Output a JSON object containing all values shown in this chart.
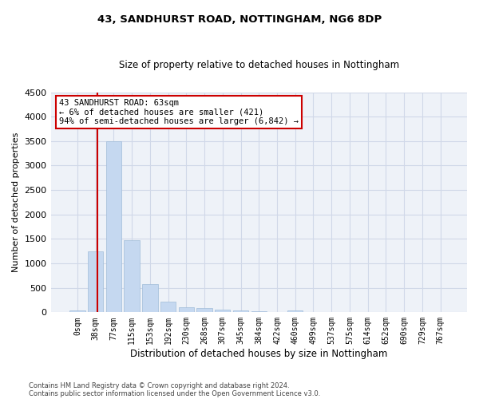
{
  "title1": "43, SANDHURST ROAD, NOTTINGHAM, NG6 8DP",
  "title2": "Size of property relative to detached houses in Nottingham",
  "xlabel": "Distribution of detached houses by size in Nottingham",
  "ylabel": "Number of detached properties",
  "bar_labels": [
    "0sqm",
    "38sqm",
    "77sqm",
    "115sqm",
    "153sqm",
    "192sqm",
    "230sqm",
    "268sqm",
    "307sqm",
    "345sqm",
    "384sqm",
    "422sqm",
    "460sqm",
    "499sqm",
    "537sqm",
    "575sqm",
    "614sqm",
    "652sqm",
    "690sqm",
    "729sqm",
    "767sqm"
  ],
  "bar_values": [
    30,
    1250,
    3500,
    1470,
    570,
    220,
    110,
    80,
    55,
    40,
    15,
    5,
    30,
    0,
    0,
    0,
    0,
    0,
    0,
    0,
    0
  ],
  "bar_color": "#c5d8f0",
  "bar_edgecolor": "#a0bcd8",
  "ylim": [
    0,
    4500
  ],
  "yticks": [
    0,
    500,
    1000,
    1500,
    2000,
    2500,
    3000,
    3500,
    4000,
    4500
  ],
  "property_line_color": "#cc0000",
  "annotation_text": "43 SANDHURST ROAD: 63sqm\n← 6% of detached houses are smaller (421)\n94% of semi-detached houses are larger (6,842) →",
  "annotation_box_color": "#ffffff",
  "annotation_box_edgecolor": "#cc0000",
  "footer1": "Contains HM Land Registry data © Crown copyright and database right 2024.",
  "footer2": "Contains public sector information licensed under the Open Government Licence v3.0.",
  "grid_color": "#d0d8e8",
  "background_color": "#eef2f8"
}
